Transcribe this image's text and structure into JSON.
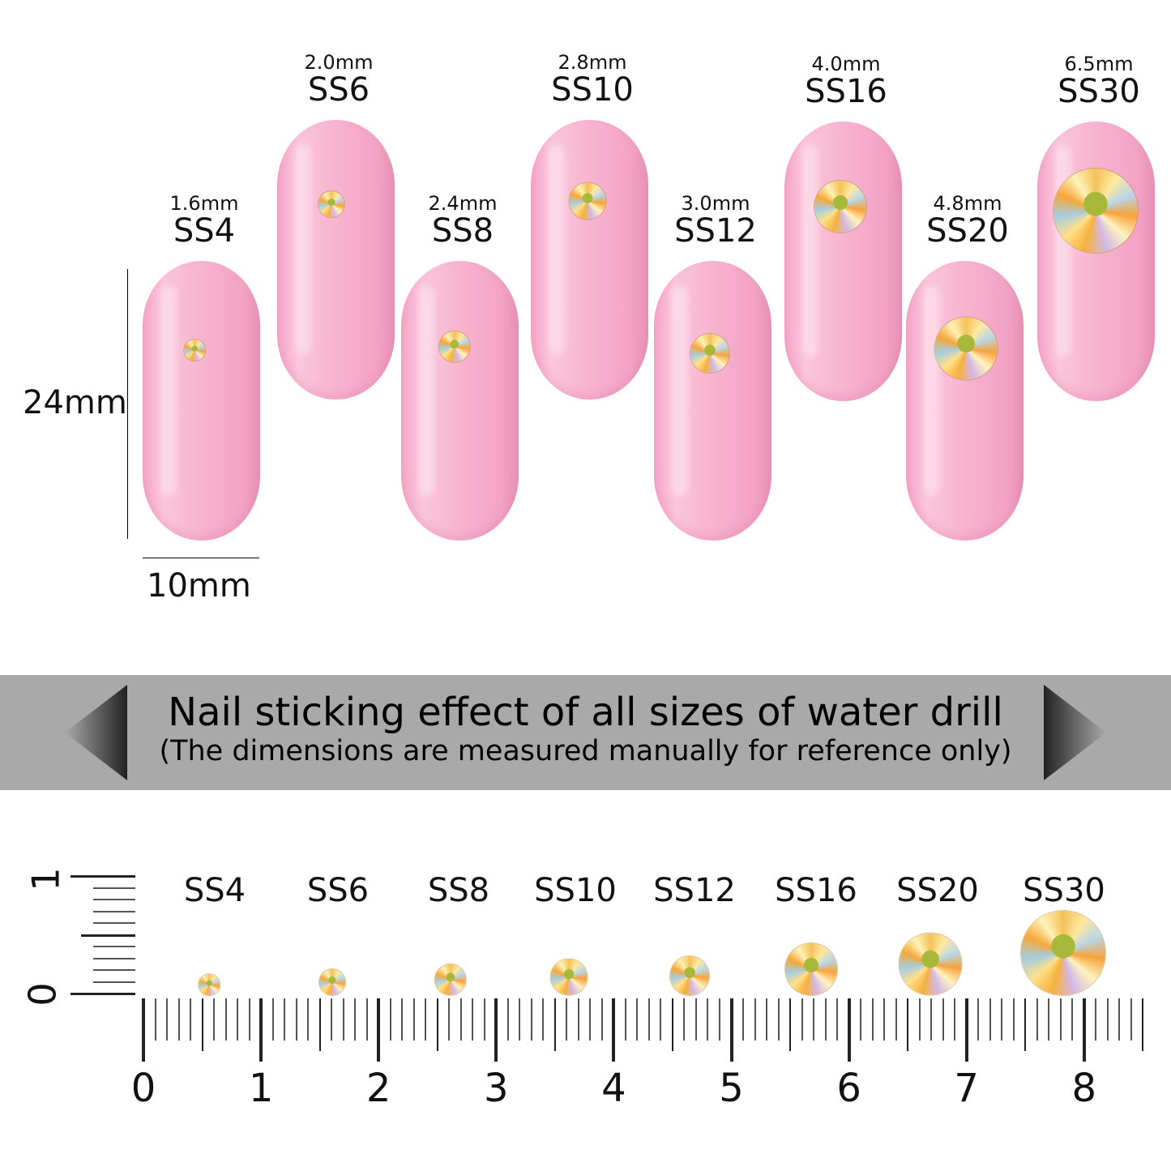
{
  "sizes": [
    {
      "code": "SS4",
      "mm_label": "1.6mm",
      "mm": 1.6
    },
    {
      "code": "SS6",
      "mm_label": "2.0mm",
      "mm": 2.0
    },
    {
      "code": "SS8",
      "mm_label": "2.4mm",
      "mm": 2.4
    },
    {
      "code": "SS10",
      "mm_label": "2.8mm",
      "mm": 2.8
    },
    {
      "code": "SS12",
      "mm_label": "3.0mm",
      "mm": 3.0
    },
    {
      "code": "SS16",
      "mm_label": "4.0mm",
      "mm": 4.0
    },
    {
      "code": "SS20",
      "mm_label": "4.8mm",
      "mm": 4.8
    },
    {
      "code": "SS30",
      "mm_label": "6.5mm",
      "mm": 6.5
    }
  ],
  "dimensions": {
    "height": "24mm",
    "width": "10mm"
  },
  "banner": {
    "title": "Nail sticking effect of all sizes of water drill",
    "subtitle": "(The dimensions are measured manually for reference only)"
  },
  "ruler": {
    "labels": [
      "0",
      "1",
      "2",
      "3",
      "4",
      "5",
      "6",
      "7",
      "8"
    ],
    "vertical_labels": [
      "0",
      "1"
    ]
  },
  "colors": {
    "nail": "#f8b6d1",
    "banner": "#a9a9a9"
  }
}
